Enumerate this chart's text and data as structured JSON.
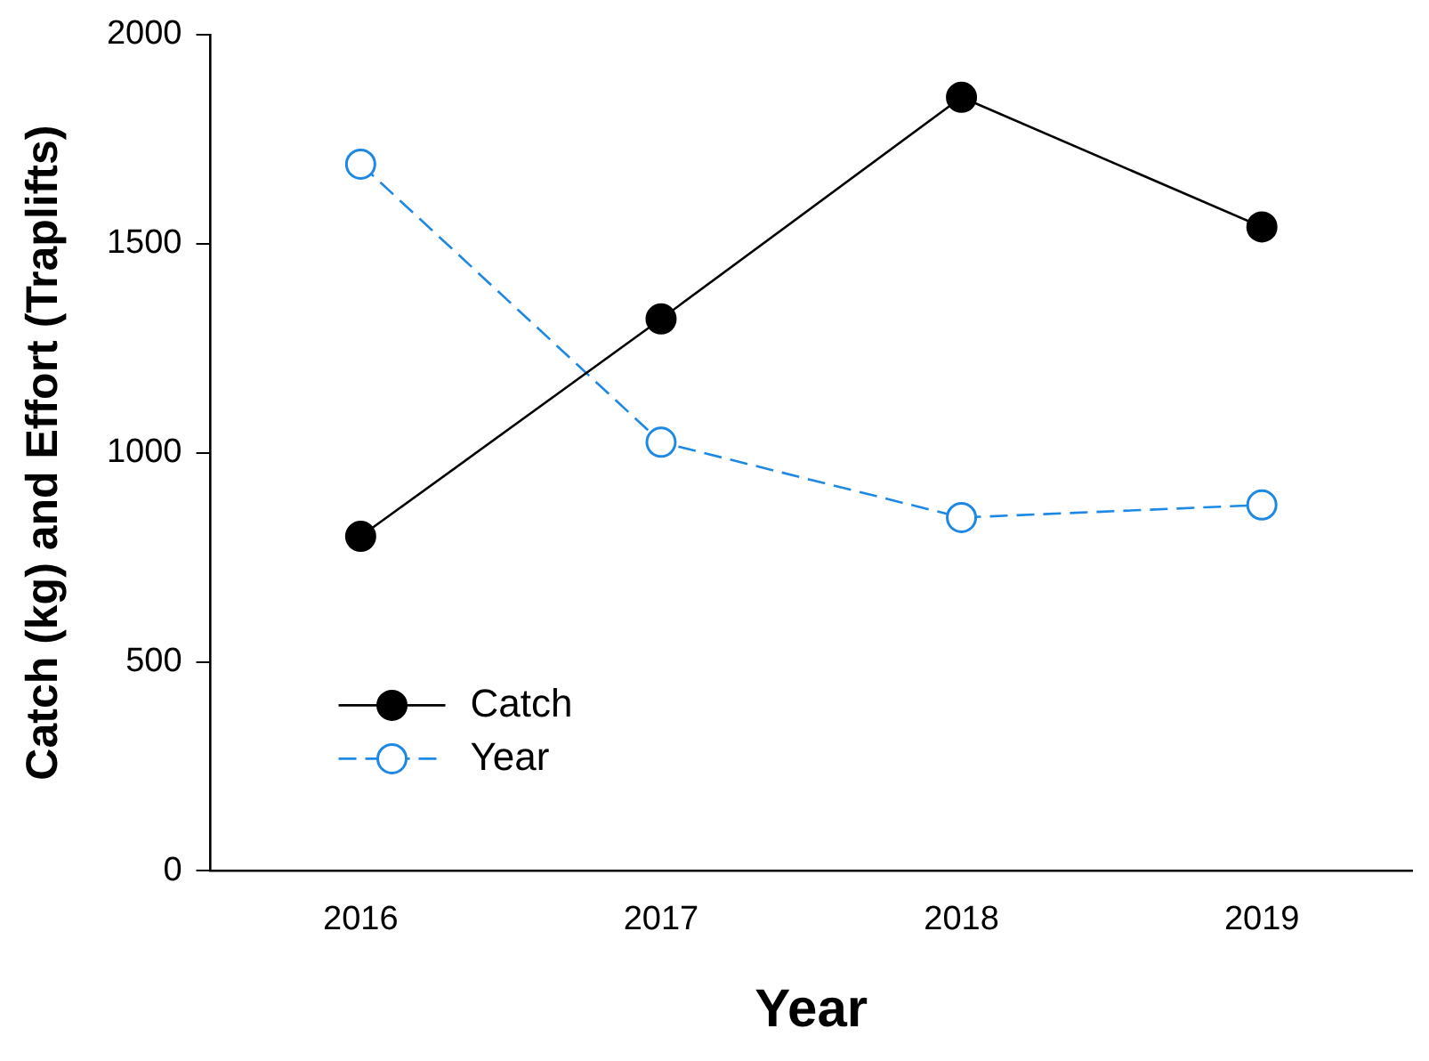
{
  "chart_data": {
    "type": "line",
    "xlabel": "Year",
    "ylabel": "Catch (kg) and Effort (Traplifts)",
    "x": [
      2016,
      2017,
      2018,
      2019
    ],
    "xlim": [
      2015.5,
      2019.5
    ],
    "xticks": [
      2016,
      2017,
      2018,
      2019
    ],
    "ylim": [
      0,
      2000
    ],
    "yticks": [
      0,
      500,
      1000,
      1500,
      2000
    ],
    "grid": false,
    "legend": "bottom left",
    "marker": "circle",
    "series": [
      {
        "name": "Catch",
        "color": "#000000",
        "values": [
          800,
          1320,
          1850,
          1540
        ],
        "line_style": "solid"
      },
      {
        "name": "Year",
        "color": "#1e88e5",
        "values": [
          1690,
          1025,
          845,
          875
        ],
        "line_style": "dashed"
      }
    ]
  }
}
